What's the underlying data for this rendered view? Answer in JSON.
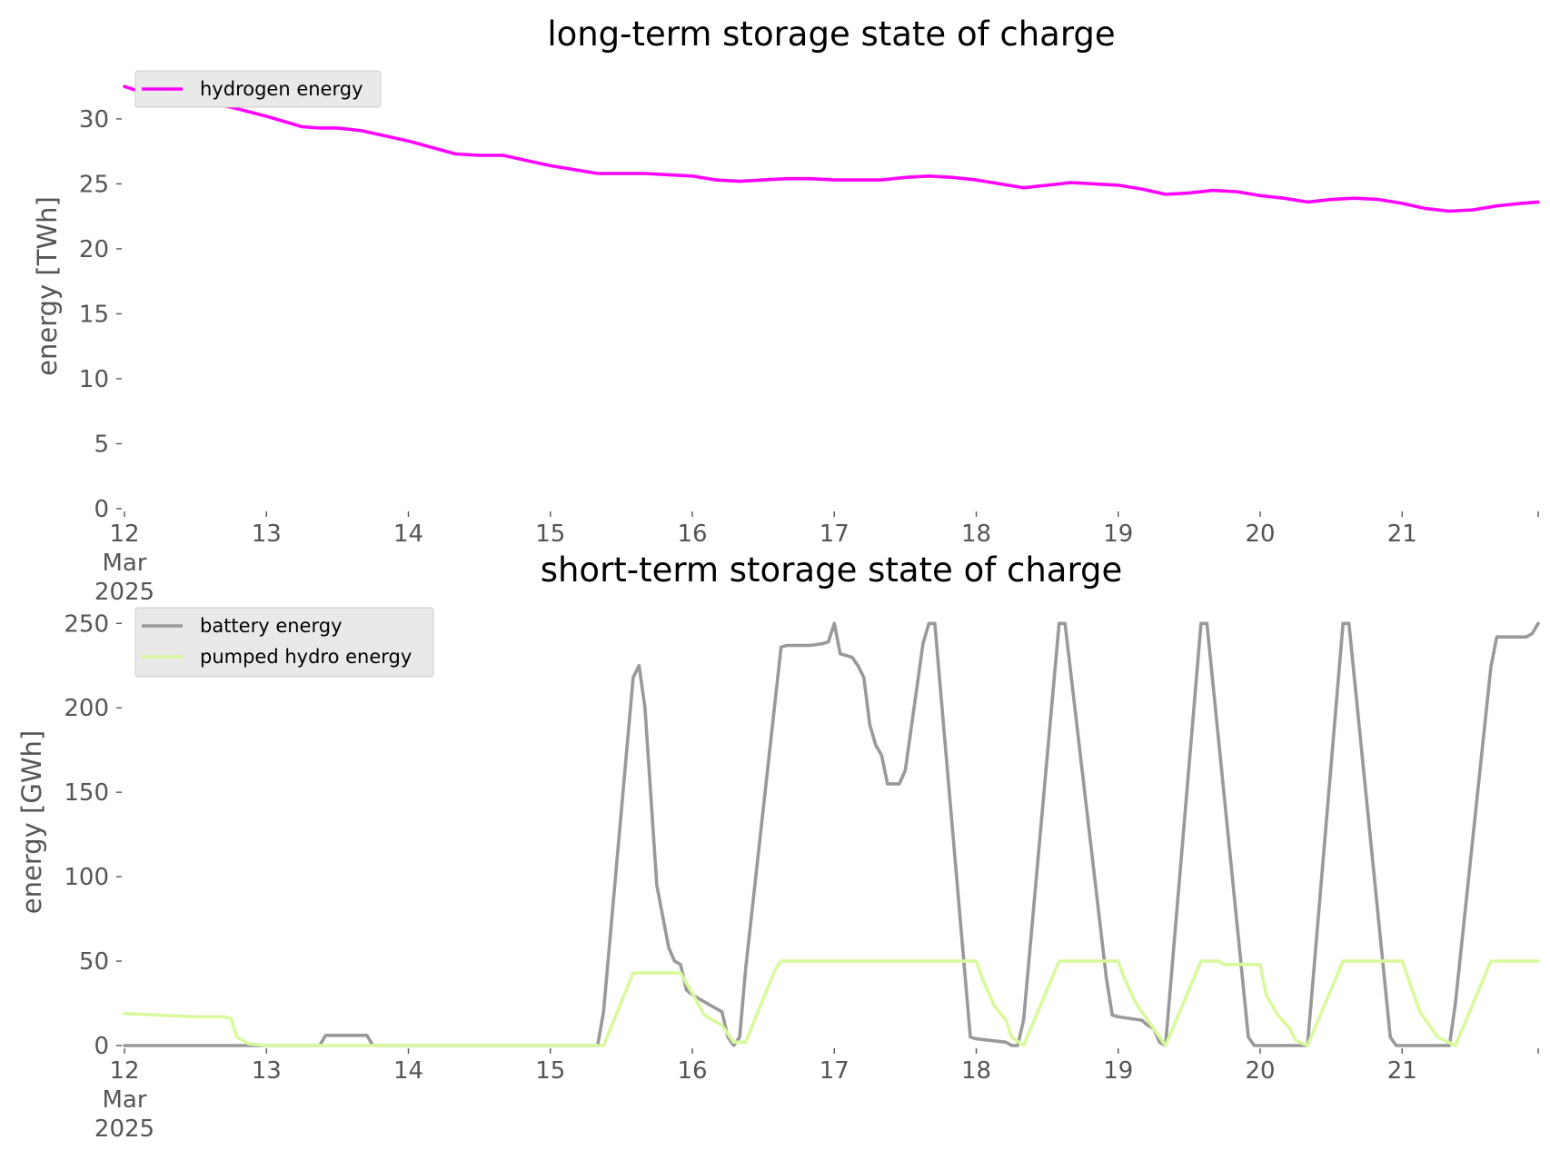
{
  "chart_data": [
    {
      "type": "line",
      "title": "long-term storage state of charge",
      "xlabel": "",
      "ylabel": "energy [TWh]",
      "xlim": [
        "2025-03-12T00:00",
        "2025-03-21T23:00"
      ],
      "ylim": [
        0,
        33
      ],
      "yticks": [
        0,
        5,
        10,
        15,
        20,
        25,
        30
      ],
      "xtick_labels": [
        {
          "day": 12,
          "lines": [
            "12",
            "Mar",
            "2025"
          ]
        },
        {
          "day": 13,
          "lines": [
            "13"
          ]
        },
        {
          "day": 14,
          "lines": [
            "14"
          ]
        },
        {
          "day": 15,
          "lines": [
            "15"
          ]
        },
        {
          "day": 16,
          "lines": [
            "16"
          ]
        },
        {
          "day": 17,
          "lines": [
            "17"
          ]
        },
        {
          "day": 18,
          "lines": [
            "18"
          ]
        },
        {
          "day": 19,
          "lines": [
            "19"
          ]
        },
        {
          "day": 20,
          "lines": [
            "20"
          ]
        },
        {
          "day": 21,
          "lines": [
            "21"
          ]
        }
      ],
      "grid": false,
      "legend": "top-left",
      "series": [
        {
          "name": "hydrogen energy",
          "color": "#ff00ff",
          "x": [
            "2025-03-12T00:00",
            "2025-03-12T06:00",
            "2025-03-12T12:00",
            "2025-03-12T18:00",
            "2025-03-13T00:00",
            "2025-03-13T06:00",
            "2025-03-13T09:00",
            "2025-03-13T12:00",
            "2025-03-13T16:00",
            "2025-03-13T20:00",
            "2025-03-14T00:00",
            "2025-03-14T04:00",
            "2025-03-14T08:00",
            "2025-03-14T12:00",
            "2025-03-14T16:00",
            "2025-03-14T20:00",
            "2025-03-15T00:00",
            "2025-03-15T04:00",
            "2025-03-15T08:00",
            "2025-03-15T12:00",
            "2025-03-15T16:00",
            "2025-03-15T20:00",
            "2025-03-16T00:00",
            "2025-03-16T04:00",
            "2025-03-16T08:00",
            "2025-03-16T12:00",
            "2025-03-16T16:00",
            "2025-03-16T20:00",
            "2025-03-17T00:00",
            "2025-03-17T04:00",
            "2025-03-17T08:00",
            "2025-03-17T12:00",
            "2025-03-17T16:00",
            "2025-03-17T20:00",
            "2025-03-18T00:00",
            "2025-03-18T04:00",
            "2025-03-18T08:00",
            "2025-03-18T12:00",
            "2025-03-18T16:00",
            "2025-03-18T20:00",
            "2025-03-19T00:00",
            "2025-03-19T04:00",
            "2025-03-19T08:00",
            "2025-03-19T12:00",
            "2025-03-19T16:00",
            "2025-03-19T20:00",
            "2025-03-20T00:00",
            "2025-03-20T04:00",
            "2025-03-20T08:00",
            "2025-03-20T12:00",
            "2025-03-20T16:00",
            "2025-03-20T20:00",
            "2025-03-21T00:00",
            "2025-03-21T04:00",
            "2025-03-21T08:00",
            "2025-03-21T12:00",
            "2025-03-21T16:00",
            "2025-03-21T20:00",
            "2025-03-21T23:00"
          ],
          "y": [
            32.5,
            31.6,
            31.4,
            30.9,
            30.2,
            29.4,
            29.3,
            29.3,
            29.1,
            28.7,
            28.3,
            27.8,
            27.3,
            27.2,
            27.2,
            26.8,
            26.4,
            26.1,
            25.8,
            25.8,
            25.8,
            25.7,
            25.6,
            25.3,
            25.2,
            25.3,
            25.4,
            25.4,
            25.3,
            25.3,
            25.3,
            25.5,
            25.6,
            25.5,
            25.3,
            25.0,
            24.7,
            24.9,
            25.1,
            25.0,
            24.9,
            24.6,
            24.2,
            24.3,
            24.5,
            24.4,
            24.1,
            23.9,
            23.6,
            23.8,
            23.9,
            23.8,
            23.5,
            23.1,
            22.9,
            23.0,
            23.3,
            23.5,
            23.6
          ]
        }
      ]
    },
    {
      "type": "line",
      "title": "short-term storage state of charge",
      "xlabel": "",
      "ylabel": "energy [GWh]",
      "xlim": [
        "2025-03-12T00:00",
        "2025-03-21T23:00"
      ],
      "ylim": [
        0,
        255
      ],
      "yticks": [
        0,
        50,
        100,
        150,
        200,
        250
      ],
      "xtick_labels": [
        {
          "day": 12,
          "lines": [
            "12",
            "Mar",
            "2025"
          ]
        },
        {
          "day": 13,
          "lines": [
            "13"
          ]
        },
        {
          "day": 14,
          "lines": [
            "14"
          ]
        },
        {
          "day": 15,
          "lines": [
            "15"
          ]
        },
        {
          "day": 16,
          "lines": [
            "16"
          ]
        },
        {
          "day": 17,
          "lines": [
            "17"
          ]
        },
        {
          "day": 18,
          "lines": [
            "18"
          ]
        },
        {
          "day": 19,
          "lines": [
            "19"
          ]
        },
        {
          "day": 20,
          "lines": [
            "20"
          ]
        },
        {
          "day": 21,
          "lines": [
            "21"
          ]
        }
      ],
      "grid": false,
      "legend": "top-left",
      "series": [
        {
          "name": "battery energy",
          "color": "#999999",
          "x": [
            "2025-03-12T00:00",
            "2025-03-13T09:00",
            "2025-03-13T10:00",
            "2025-03-13T17:00",
            "2025-03-13T18:00",
            "2025-03-15T08:00",
            "2025-03-15T09:00",
            "2025-03-15T14:00",
            "2025-03-15T15:00",
            "2025-03-15T16:00",
            "2025-03-15T18:00",
            "2025-03-15T20:00",
            "2025-03-15T21:00",
            "2025-03-15T22:00",
            "2025-03-15T23:00",
            "2025-03-16T00:00",
            "2025-03-16T01:00",
            "2025-03-16T03:00",
            "2025-03-16T05:00",
            "2025-03-16T06:00",
            "2025-03-16T07:00",
            "2025-03-16T08:00",
            "2025-03-16T09:00",
            "2025-03-16T15:00",
            "2025-03-16T16:00",
            "2025-03-16T20:00",
            "2025-03-16T22:00",
            "2025-03-16T23:00",
            "2025-03-17T00:00",
            "2025-03-17T01:00",
            "2025-03-17T03:00",
            "2025-03-17T04:00",
            "2025-03-17T05:00",
            "2025-03-17T06:00",
            "2025-03-17T07:00",
            "2025-03-17T08:00",
            "2025-03-17T09:00",
            "2025-03-17T10:00",
            "2025-03-17T11:00",
            "2025-03-17T12:00",
            "2025-03-17T14:00",
            "2025-03-17T15:00",
            "2025-03-17T16:00",
            "2025-03-17T17:00",
            "2025-03-17T23:00",
            "2025-03-18T00:00",
            "2025-03-18T05:00",
            "2025-03-18T06:00",
            "2025-03-18T07:00",
            "2025-03-18T08:00",
            "2025-03-18T14:00",
            "2025-03-18T15:00",
            "2025-03-18T22:00",
            "2025-03-18T23:00",
            "2025-03-19T00:00",
            "2025-03-19T04:00",
            "2025-03-19T05:00",
            "2025-03-19T06:00",
            "2025-03-19T07:00",
            "2025-03-19T08:00",
            "2025-03-19T14:00",
            "2025-03-19T15:00",
            "2025-03-19T22:00",
            "2025-03-19T23:00",
            "2025-03-20T00:00",
            "2025-03-20T07:00",
            "2025-03-20T08:00",
            "2025-03-20T14:00",
            "2025-03-20T15:00",
            "2025-03-20T22:00",
            "2025-03-20T23:00",
            "2025-03-21T00:00",
            "2025-03-21T06:00",
            "2025-03-21T08:00",
            "2025-03-21T09:00",
            "2025-03-21T15:00",
            "2025-03-21T16:00",
            "2025-03-21T21:00",
            "2025-03-21T22:00",
            "2025-03-21T23:00"
          ],
          "y": [
            0,
            0,
            6,
            6,
            0,
            0,
            20,
            218,
            225,
            200,
            95,
            58,
            50,
            48,
            33,
            30,
            28,
            24,
            20,
            5,
            0,
            5,
            45,
            236,
            237,
            237,
            238,
            239,
            250,
            232,
            230,
            225,
            218,
            190,
            178,
            172,
            155,
            155,
            155,
            163,
            213,
            238,
            250,
            250,
            5,
            4,
            2,
            0,
            0,
            15,
            250,
            250,
            40,
            18,
            17,
            15,
            12,
            10,
            2,
            0,
            250,
            250,
            5,
            0,
            0,
            0,
            0,
            250,
            250,
            5,
            0,
            0,
            0,
            0,
            25,
            224,
            242,
            242,
            244,
            250
          ]
        },
        {
          "name": "pumped hydro energy",
          "color": "#d9f99d",
          "x": [
            "2025-03-12T00:00",
            "2025-03-12T06:00",
            "2025-03-12T12:00",
            "2025-03-12T17:00",
            "2025-03-12T18:00",
            "2025-03-12T19:00",
            "2025-03-12T21:00",
            "2025-03-13T00:00",
            "2025-03-15T09:00",
            "2025-03-15T14:00",
            "2025-03-15T20:00",
            "2025-03-15T22:00",
            "2025-03-16T00:00",
            "2025-03-16T02:00",
            "2025-03-16T05:00",
            "2025-03-16T07:00",
            "2025-03-16T09:00",
            "2025-03-16T14:00",
            "2025-03-16T15:00",
            "2025-03-17T23:00",
            "2025-03-18T00:00",
            "2025-03-18T01:00",
            "2025-03-18T03:00",
            "2025-03-18T05:00",
            "2025-03-18T06:00",
            "2025-03-18T08:00",
            "2025-03-18T14:00",
            "2025-03-18T23:00",
            "2025-03-19T00:00",
            "2025-03-19T01:00",
            "2025-03-19T03:00",
            "2025-03-19T05:00",
            "2025-03-19T06:00",
            "2025-03-19T08:00",
            "2025-03-19T14:00",
            "2025-03-19T17:00",
            "2025-03-19T18:00",
            "2025-03-19T21:00",
            "2025-03-20T00:00",
            "2025-03-20T01:00",
            "2025-03-20T03:00",
            "2025-03-20T05:00",
            "2025-03-20T06:00",
            "2025-03-20T08:00",
            "2025-03-20T14:00",
            "2025-03-20T23:00",
            "2025-03-21T00:00",
            "2025-03-21T01:00",
            "2025-03-21T03:00",
            "2025-03-21T06:00",
            "2025-03-21T09:00",
            "2025-03-21T15:00",
            "2025-03-21T23:00"
          ],
          "y": [
            19,
            18,
            17,
            17,
            16,
            5,
            1,
            0,
            0,
            43,
            43,
            43,
            31,
            18,
            12,
            2,
            2,
            45,
            50,
            50,
            50,
            40,
            24,
            15,
            5,
            0,
            50,
            50,
            50,
            40,
            25,
            15,
            10,
            0,
            50,
            50,
            48,
            48,
            48,
            30,
            18,
            10,
            3,
            0,
            50,
            50,
            50,
            40,
            20,
            5,
            0,
            50,
            50
          ]
        }
      ]
    }
  ]
}
